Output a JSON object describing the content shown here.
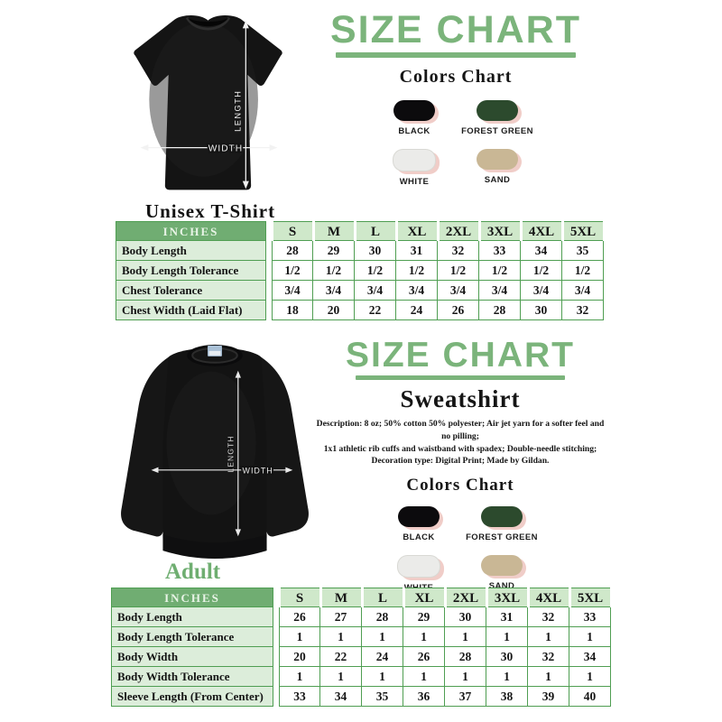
{
  "theme": {
    "green_title": "#7bb47b",
    "table_border": "#4f9e52",
    "inches_bg": "#70ad72",
    "inches_text": "#e8f4e6",
    "size_header_bg": "#cfe8ca",
    "label_bg": "#dcedda",
    "swatch_shadow": "#f0cdc8"
  },
  "tshirt_section": {
    "title": "SIZE CHART",
    "colors_chart_label": "Colors Chart",
    "product_label": "Unisex T-Shirt",
    "length_label": "LENGTH",
    "width_label": "WIDTH",
    "colors": [
      {
        "name": "BLACK",
        "hex": "#0c0b0d"
      },
      {
        "name": "FOREST GREEN",
        "hex": "#2c4a2d"
      },
      {
        "name": "WHITE",
        "hex": "#ebebe9"
      },
      {
        "name": "SAND",
        "hex": "#c9b795"
      }
    ],
    "table": {
      "header": [
        "INCHES",
        "S",
        "M",
        "L",
        "XL",
        "2XL",
        "3XL",
        "4XL",
        "5XL"
      ],
      "rows": [
        {
          "label": "Body Length",
          "values": [
            "28",
            "29",
            "30",
            "31",
            "32",
            "33",
            "34",
            "35"
          ]
        },
        {
          "label": "Body Length Tolerance",
          "values": [
            "1/2",
            "1/2",
            "1/2",
            "1/2",
            "1/2",
            "1/2",
            "1/2",
            "1/2"
          ]
        },
        {
          "label": "Chest Tolerance",
          "values": [
            "3/4",
            "3/4",
            "3/4",
            "3/4",
            "3/4",
            "3/4",
            "3/4",
            "3/4"
          ]
        },
        {
          "label": "Chest Width (Laid Flat)",
          "values": [
            "18",
            "20",
            "22",
            "24",
            "26",
            "28",
            "30",
            "32"
          ]
        }
      ]
    }
  },
  "sweatshirt_section": {
    "title": "SIZE CHART",
    "product_label": "Sweatshirt",
    "description_lines": [
      "Description: 8 oz; 50% cotton 50% polyester; Air jet yarn for a softer feel and no pilling;",
      "1x1 athletic rib cuffs and waistband with spadex; Double-needle stitching;",
      "Decoration type: Digital Print; Made by Gildan."
    ],
    "colors_chart_label": "Colors Chart",
    "group_label": "Adult",
    "length_label": "LENGTH",
    "width_label": "WIDTH",
    "colors": [
      {
        "name": "BLACK",
        "hex": "#0c0b0d"
      },
      {
        "name": "FOREST GREEN",
        "hex": "#2c4a2d"
      },
      {
        "name": "WHITE",
        "hex": "#ebebe9"
      },
      {
        "name": "SAND",
        "hex": "#c9b795"
      }
    ],
    "table": {
      "header": [
        "INCHES",
        "S",
        "M",
        "L",
        "XL",
        "2XL",
        "3XL",
        "4XL",
        "5XL"
      ],
      "rows": [
        {
          "label": "Body Length",
          "values": [
            "26",
            "27",
            "28",
            "29",
            "30",
            "31",
            "32",
            "33"
          ]
        },
        {
          "label": "Body Length Tolerance",
          "values": [
            "1",
            "1",
            "1",
            "1",
            "1",
            "1",
            "1",
            "1"
          ]
        },
        {
          "label": "Body Width",
          "values": [
            "20",
            "22",
            "24",
            "26",
            "28",
            "30",
            "32",
            "34"
          ]
        },
        {
          "label": "Body Width Tolerance",
          "values": [
            "1",
            "1",
            "1",
            "1",
            "1",
            "1",
            "1",
            "1"
          ]
        },
        {
          "label": "Sleeve Length (From Center)",
          "values": [
            "33",
            "34",
            "35",
            "36",
            "37",
            "38",
            "39",
            "40"
          ]
        }
      ]
    }
  }
}
